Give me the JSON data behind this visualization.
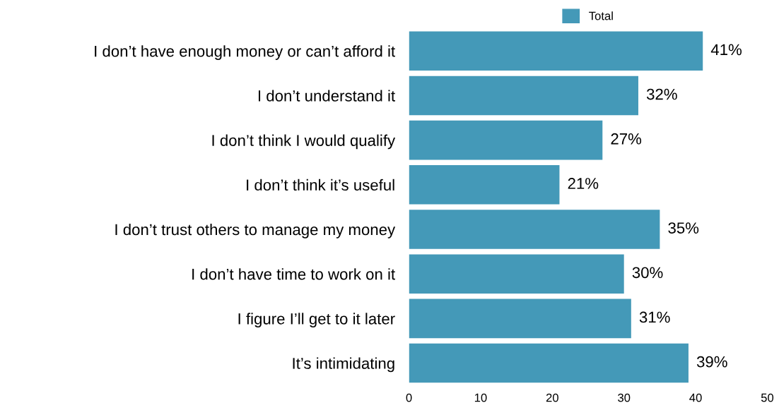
{
  "chart_data": {
    "type": "bar",
    "orientation": "horizontal",
    "categories": [
      "I don’t have enough money or can’t afford it",
      "I don’t understand it",
      "I don’t think I would qualify",
      "I don’t think it’s useful",
      "I don’t trust others to manage my money",
      "I don’t have time to work on it",
      "I figure I’ll get to it later",
      "It’s intimidating"
    ],
    "series": [
      {
        "name": "Total",
        "color": "#4499b8",
        "values": [
          41,
          32,
          27,
          21,
          35,
          30,
          31,
          39
        ],
        "value_labels": [
          "41%",
          "32%",
          "27%",
          "21%",
          "35%",
          "30%",
          "31%",
          "39%"
        ]
      }
    ],
    "xlim": [
      0,
      50
    ],
    "xticks": [
      0,
      10,
      20,
      30,
      40,
      50
    ],
    "grid": false,
    "legend": "top"
  }
}
